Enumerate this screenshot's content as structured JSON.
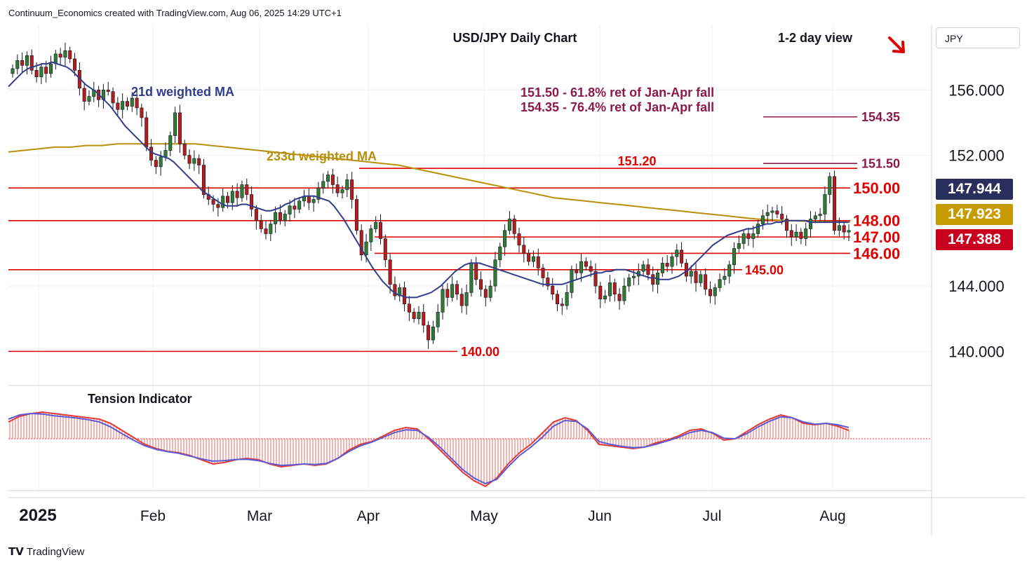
{
  "header": {
    "credit": "Continuum_Economics created with TradingView.com, Aug 06, 2025 14:29 UTC+1"
  },
  "footer": {
    "logo": "TradingView"
  },
  "currency": "JPY",
  "chart_data": {
    "type": "candlestick",
    "title": "USD/JPY Daily Chart",
    "view_label": "1-2 day view",
    "view_direction": "down",
    "annotations": {
      "ma21": "21d weighted MA",
      "ma233": "233d weighted MA",
      "fib1": "151.50 - 61.8% ret of Jan-Apr fall",
      "fib2": "154.35 - 76.4% ret of Jan-Apr fall",
      "indicator": "Tension Indicator"
    },
    "y_axis": {
      "ticks": [
        "156.000",
        "152.000",
        "144.000",
        "140.000"
      ],
      "range": [
        138.0,
        160.0
      ]
    },
    "x_axis": {
      "ticks": [
        "2025",
        "Feb",
        "Mar",
        "Apr",
        "May",
        "Jun",
        "Jul",
        "Aug"
      ]
    },
    "price_badges": [
      {
        "value": "147.944",
        "color": "#2a2e5c"
      },
      {
        "value": "147.923",
        "color": "#c79a00"
      },
      {
        "value": "147.388",
        "color": "#c8001e"
      }
    ],
    "levels": [
      {
        "value": 154.35,
        "label": "154.35",
        "color": "#8b1a4a"
      },
      {
        "value": 151.5,
        "label": "151.50",
        "color": "#8b1a4a"
      },
      {
        "value": 151.2,
        "label": "151.20",
        "color": "#e00000"
      },
      {
        "value": 150.0,
        "label": "150.00",
        "color": "#e00000"
      },
      {
        "value": 148.0,
        "label": "148.00",
        "color": "#e00000"
      },
      {
        "value": 147.0,
        "label": "147.00",
        "color": "#e00000"
      },
      {
        "value": 146.0,
        "label": "146.00",
        "color": "#e00000"
      },
      {
        "value": 145.0,
        "label": "145.00",
        "color": "#e00000"
      },
      {
        "value": 140.0,
        "label": "140.00",
        "color": "#e00000"
      }
    ],
    "colors": {
      "up": "#2e7d32",
      "down": "#b71c1c",
      "ma21": "#2f3d8c",
      "ma233": "#b8900a",
      "tension": "#e53935",
      "tension_signal": "#5b5bd6"
    },
    "closes": [
      157.3,
      157.8,
      157.5,
      158.1,
      157.2,
      156.8,
      157.4,
      157.0,
      157.6,
      158.2,
      158.0,
      158.4,
      157.9,
      157.2,
      156.1,
      155.3,
      155.6,
      156.0,
      155.4,
      156.0,
      155.9,
      155.2,
      154.8,
      155.3,
      155.0,
      155.5,
      154.9,
      154.3,
      152.5,
      151.7,
      151.3,
      151.9,
      152.3,
      153.2,
      154.6,
      152.7,
      152.0,
      151.5,
      151.8,
      151.4,
      149.6,
      149.3,
      149.0,
      148.8,
      149.5,
      149.1,
      149.8,
      149.4,
      150.2,
      149.6,
      148.7,
      148.0,
      147.5,
      147.2,
      147.8,
      148.5,
      148.0,
      148.4,
      148.9,
      148.7,
      149.2,
      149.5,
      149.1,
      149.3,
      150.0,
      150.4,
      150.8,
      150.2,
      149.7,
      149.9,
      150.5,
      149.3,
      147.4,
      145.9,
      146.7,
      147.5,
      147.9,
      146.9,
      145.6,
      144.1,
      143.4,
      143.9,
      142.9,
      142.4,
      142.0,
      142.4,
      141.6,
      140.7,
      141.5,
      142.4,
      143.8,
      143.3,
      144.1,
      143.5,
      142.8,
      143.6,
      145.4,
      144.4,
      143.8,
      143.3,
      144.0,
      145.6,
      146.4,
      147.4,
      148.1,
      147.2,
      146.5,
      146.0,
      145.5,
      145.8,
      145.1,
      144.5,
      144.0,
      143.5,
      142.9,
      142.8,
      143.6,
      145.0,
      144.8,
      145.5,
      145.2,
      144.9,
      144.0,
      143.2,
      143.4,
      144.2,
      143.5,
      143.1,
      144.0,
      144.5,
      144.6,
      144.9,
      145.3,
      144.7,
      144.1,
      144.8,
      145.4,
      145.2,
      145.8,
      146.2,
      145.4,
      144.6,
      144.9,
      144.2,
      144.7,
      143.8,
      143.4,
      143.9,
      144.4,
      144.6,
      145.3,
      146.3,
      146.6,
      147.2,
      146.9,
      147.2,
      147.8,
      148.3,
      148.5,
      148.6,
      148.4,
      148.1,
      147.4,
      147.0,
      147.3,
      146.9,
      147.5,
      148.1,
      148.3,
      148.4,
      149.6,
      150.7,
      147.4,
      147.7,
      147.3,
      147.4
    ],
    "ma21": [
      156.2,
      156.5,
      156.8,
      157.1,
      157.3,
      157.4,
      157.5,
      157.6,
      157.6,
      157.7,
      157.6,
      157.5,
      157.4,
      157.2,
      156.9,
      156.6,
      156.3,
      156.1,
      155.9,
      155.6,
      155.3,
      155.0,
      154.6,
      154.2,
      153.8,
      153.5,
      153.2,
      152.9,
      152.6,
      152.3,
      152.1,
      152.0,
      151.9,
      151.8,
      151.6,
      151.3,
      151.0,
      150.7,
      150.4,
      150.1,
      149.8,
      149.6,
      149.4,
      149.2,
      149.0,
      148.9,
      148.9,
      148.9,
      149.0,
      149.0,
      148.9,
      148.8,
      148.7,
      148.6,
      148.6,
      148.7,
      148.8,
      149.0,
      149.1,
      149.3,
      149.4,
      149.5,
      149.5,
      149.5,
      149.4,
      149.3,
      149.2,
      148.9,
      148.5,
      148.1,
      147.6,
      147.1,
      146.6,
      146.1,
      145.6,
      145.1,
      144.7,
      144.3,
      144.0,
      143.7,
      143.5,
      143.4,
      143.3,
      143.3,
      143.3,
      143.4,
      143.5,
      143.6,
      143.8,
      144.0,
      144.3,
      144.6,
      144.9,
      145.1,
      145.3,
      145.4,
      145.4,
      145.4,
      145.3,
      145.2,
      145.1,
      145.0,
      144.9,
      144.8,
      144.7,
      144.6,
      144.5,
      144.4,
      144.3,
      144.2,
      144.1,
      144.1,
      144.1,
      144.1,
      144.1,
      144.2,
      144.3,
      144.4,
      144.5,
      144.6,
      144.7,
      144.8,
      144.8,
      144.9,
      144.9,
      145.0,
      145.0,
      145.0,
      144.9,
      144.8,
      144.7,
      144.6,
      144.5,
      144.5,
      144.4,
      144.4,
      144.4,
      144.5,
      144.6,
      144.8,
      145.0,
      145.3,
      145.6,
      145.9,
      146.2,
      146.5,
      146.7,
      146.9,
      147.1,
      147.2,
      147.3,
      147.4,
      147.5,
      147.5,
      147.6,
      147.7,
      147.8,
      147.8,
      147.9,
      147.9,
      148.0,
      148.0,
      148.0,
      148.0,
      148.0,
      147.9,
      147.9,
      147.9,
      147.9,
      147.9,
      147.9,
      147.9,
      147.9,
      147.9
    ],
    "ma233": [
      152.2,
      152.3,
      152.4,
      152.5,
      152.5,
      152.6,
      152.6,
      152.7,
      152.7,
      152.7,
      152.7,
      152.7,
      152.7,
      152.6,
      152.5,
      152.4,
      152.3,
      152.2,
      152.1,
      152.0,
      151.9,
      151.8,
      151.7,
      151.6,
      151.5,
      151.4,
      151.2,
      151.0,
      150.8,
      150.6,
      150.4,
      150.2,
      150.0,
      149.8,
      149.6,
      149.4,
      149.3,
      149.2,
      149.1,
      149.0,
      148.9,
      148.8,
      148.7,
      148.6,
      148.5,
      148.4,
      148.3,
      148.2,
      148.1,
      148.05,
      148.0,
      147.97,
      147.95,
      147.93,
      147.92
    ],
    "tension": [
      0.6,
      0.8,
      0.9,
      0.95,
      0.9,
      0.85,
      0.8,
      0.75,
      0.7,
      0.55,
      0.3,
      0.05,
      -0.2,
      -0.35,
      -0.45,
      -0.5,
      -0.6,
      -0.75,
      -0.9,
      -0.85,
      -0.75,
      -0.7,
      -0.75,
      -0.9,
      -1.0,
      -0.95,
      -0.9,
      -0.95,
      -0.9,
      -0.7,
      -0.4,
      -0.2,
      -0.1,
      0.1,
      0.3,
      0.4,
      0.35,
      0.0,
      -0.4,
      -0.8,
      -1.2,
      -1.5,
      -1.7,
      -1.4,
      -0.9,
      -0.5,
      -0.2,
      0.2,
      0.6,
      0.75,
      0.65,
      0.3,
      -0.2,
      -0.25,
      -0.3,
      -0.35,
      -0.3,
      -0.15,
      -0.05,
      0.1,
      0.3,
      0.35,
      0.2,
      -0.05,
      0.0,
      0.25,
      0.5,
      0.7,
      0.85,
      0.75,
      0.55,
      0.5,
      0.55,
      0.45,
      0.3
    ],
    "signal": [
      0.7,
      0.85,
      0.9,
      0.88,
      0.82,
      0.78,
      0.74,
      0.68,
      0.6,
      0.42,
      0.18,
      -0.05,
      -0.25,
      -0.38,
      -0.46,
      -0.52,
      -0.62,
      -0.72,
      -0.8,
      -0.78,
      -0.74,
      -0.73,
      -0.78,
      -0.88,
      -0.95,
      -0.93,
      -0.9,
      -0.92,
      -0.88,
      -0.7,
      -0.45,
      -0.25,
      -0.12,
      0.05,
      0.22,
      0.32,
      0.3,
      0.05,
      -0.3,
      -0.7,
      -1.1,
      -1.4,
      -1.6,
      -1.45,
      -1.0,
      -0.6,
      -0.3,
      0.05,
      0.45,
      0.65,
      0.62,
      0.35,
      -0.1,
      -0.2,
      -0.27,
      -0.32,
      -0.3,
      -0.2,
      -0.08,
      0.05,
      0.22,
      0.3,
      0.22,
      0.02,
      0.0,
      0.18,
      0.42,
      0.62,
      0.78,
      0.75,
      0.6,
      0.52,
      0.55,
      0.5,
      0.4
    ]
  }
}
